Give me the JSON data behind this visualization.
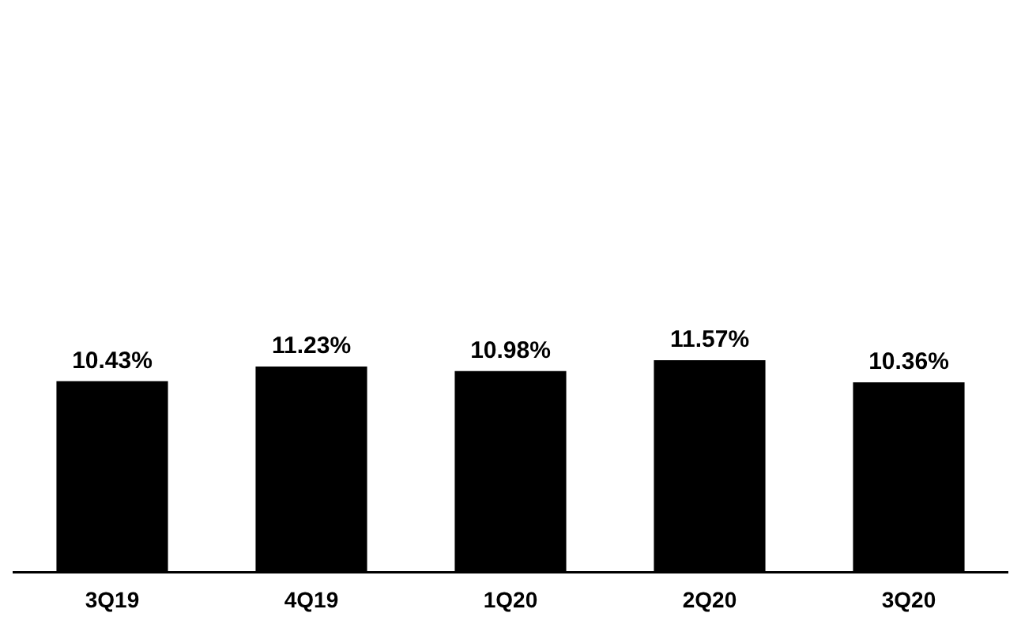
{
  "chart_data": {
    "type": "bar",
    "categories": [
      "3Q19",
      "4Q19",
      "1Q20",
      "2Q20",
      "3Q20"
    ],
    "values": [
      10.43,
      11.23,
      10.98,
      11.57,
      10.36
    ],
    "value_labels": [
      "10.43%",
      "11.23%",
      "10.98%",
      "11.57%",
      "10.36%"
    ],
    "color": "#000000",
    "legend": false
  }
}
